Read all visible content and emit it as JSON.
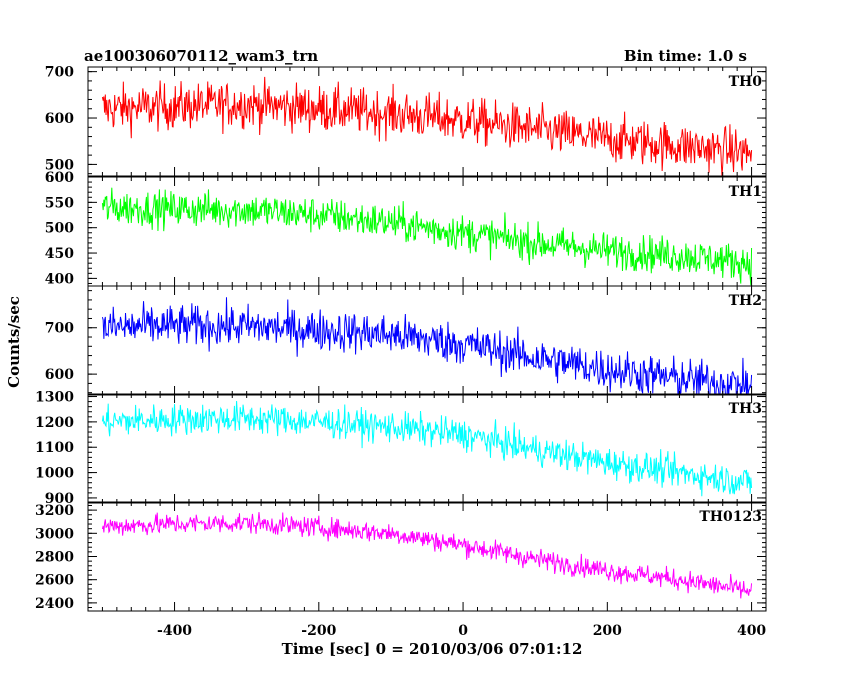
{
  "chart_data": {
    "type": "line",
    "title_left": "ae100306070112_wam3_trn",
    "title_right": "Bin time: 1.0 s",
    "xlabel": "Time [sec] 0 = 2010/03/06 07:01:12",
    "ylabel": "Counts/sec",
    "xlim": [
      -520,
      420
    ],
    "xticks": [
      -400,
      -200,
      0,
      200,
      400
    ],
    "x_range": [
      -500,
      400
    ],
    "grid": false,
    "panels": [
      {
        "name": "TH0",
        "color": "#ff0000",
        "ylim": [
          475,
          710
        ],
        "yticks": [
          500,
          600,
          700
        ],
        "trend_x": [
          -500,
          -400,
          -300,
          -200,
          -100,
          0,
          100,
          200,
          300,
          400
        ],
        "trend_y": [
          620,
          625,
          630,
          620,
          610,
          595,
          575,
          555,
          540,
          525
        ],
        "noise": 45
      },
      {
        "name": "TH1",
        "color": "#00ff00",
        "ylim": [
          385,
          600
        ],
        "yticks": [
          400,
          450,
          500,
          550,
          600
        ],
        "trend_x": [
          -500,
          -400,
          -300,
          -200,
          -100,
          0,
          100,
          200,
          300,
          400
        ],
        "trend_y": [
          540,
          537,
          535,
          525,
          510,
          490,
          470,
          455,
          445,
          430
        ],
        "noise": 32
      },
      {
        "name": "TH2",
        "color": "#0000ff",
        "ylim": [
          555,
          790
        ],
        "yticks": [
          600,
          700
        ],
        "trend_x": [
          -500,
          -400,
          -300,
          -200,
          -100,
          0,
          100,
          200,
          300,
          400
        ],
        "trend_y": [
          700,
          705,
          703,
          695,
          685,
          665,
          635,
          610,
          590,
          575
        ],
        "noise": 40
      },
      {
        "name": "TH3",
        "color": "#00ffff",
        "ylim": [
          880,
          1310
        ],
        "yticks": [
          900,
          1000,
          1100,
          1200,
          1300
        ],
        "trend_x": [
          -500,
          -400,
          -300,
          -200,
          -100,
          0,
          100,
          200,
          300,
          400
        ],
        "trend_y": [
          1200,
          1210,
          1215,
          1200,
          1180,
          1150,
          1090,
          1040,
          1000,
          960
        ],
        "noise": 55
      },
      {
        "name": "TH0123",
        "color": "#ff00ff",
        "ylim": [
          2330,
          3270
        ],
        "yticks": [
          2400,
          2600,
          2800,
          3000,
          3200
        ],
        "trend_x": [
          -500,
          -400,
          -300,
          -200,
          -100,
          0,
          100,
          200,
          300,
          400
        ],
        "trend_y": [
          3060,
          3080,
          3090,
          3050,
          3000,
          2900,
          2780,
          2680,
          2600,
          2500
        ],
        "noise": 80
      }
    ]
  }
}
